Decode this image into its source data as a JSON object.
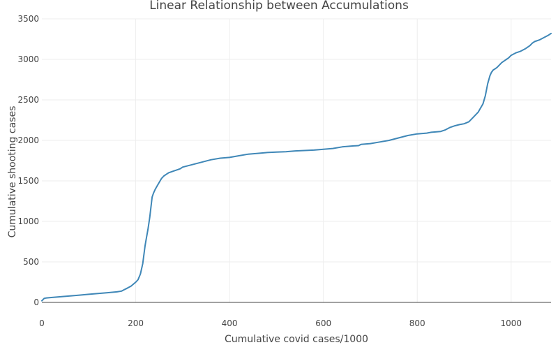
{
  "chart_data": {
    "type": "line",
    "title": "Linear Relationship between Accumulations",
    "xlabel": "Cumulative covid cases/1000",
    "ylabel": "Cumulative shooting cases",
    "xlim": [
      0,
      1085
    ],
    "ylim": [
      0,
      3500
    ],
    "xticks": [
      0,
      200,
      400,
      600,
      800,
      1000
    ],
    "yticks": [
      0,
      500,
      1000,
      1500,
      2000,
      2500,
      3000,
      3500
    ],
    "grid": true,
    "legend": "none",
    "line_color": "#3f87b7",
    "series": [
      {
        "x": [
          0,
          5,
          10,
          20,
          40,
          60,
          80,
          100,
          120,
          140,
          160,
          170,
          175,
          180,
          190,
          200,
          205,
          210,
          215,
          220,
          223,
          226,
          230,
          235,
          238,
          242,
          245,
          250,
          255,
          260,
          265,
          270,
          280,
          290,
          295,
          300,
          320,
          340,
          360,
          380,
          400,
          420,
          440,
          460,
          480,
          500,
          520,
          540,
          560,
          580,
          600,
          620,
          640,
          660,
          675,
          680,
          700,
          720,
          740,
          760,
          780,
          800,
          820,
          830,
          850,
          860,
          870,
          880,
          890,
          900,
          910,
          920,
          930,
          940,
          945,
          950,
          955,
          958,
          962,
          965,
          970,
          975,
          980,
          985,
          990,
          995,
          1000,
          1010,
          1020,
          1030,
          1040,
          1045,
          1050,
          1060,
          1070,
          1080,
          1085
        ],
        "y": [
          20,
          50,
          55,
          60,
          70,
          80,
          90,
          100,
          110,
          120,
          130,
          140,
          155,
          170,
          200,
          250,
          280,
          350,
          480,
          700,
          800,
          900,
          1050,
          1300,
          1350,
          1400,
          1430,
          1480,
          1530,
          1560,
          1580,
          1600,
          1620,
          1640,
          1650,
          1670,
          1700,
          1730,
          1760,
          1780,
          1790,
          1810,
          1830,
          1840,
          1850,
          1855,
          1860,
          1870,
          1875,
          1880,
          1890,
          1900,
          1920,
          1930,
          1935,
          1950,
          1960,
          1980,
          2000,
          2030,
          2060,
          2080,
          2090,
          2100,
          2110,
          2130,
          2160,
          2180,
          2195,
          2205,
          2230,
          2290,
          2350,
          2450,
          2550,
          2700,
          2800,
          2840,
          2870,
          2880,
          2900,
          2930,
          2960,
          2980,
          3000,
          3020,
          3050,
          3080,
          3100,
          3130,
          3170,
          3200,
          3220,
          3240,
          3270,
          3300,
          3320
        ]
      }
    ]
  }
}
